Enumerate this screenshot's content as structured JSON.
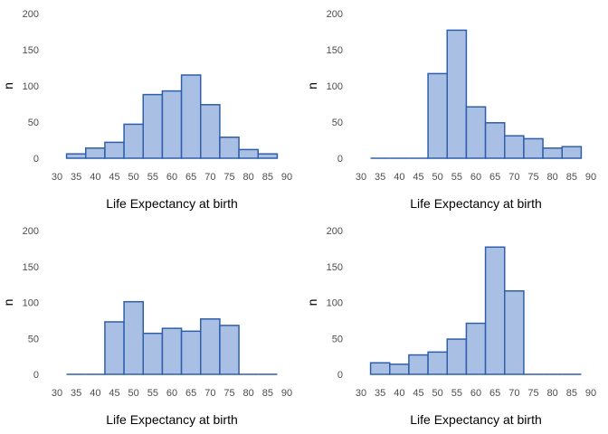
{
  "theme": {
    "bar_fill": "#a9bfe3",
    "bar_stroke": "#2f5faa",
    "text": "#4d4d4d",
    "title": "#000000"
  },
  "chart_data": [
    {
      "type": "bar",
      "xlabel": "Life Expectancy at birth",
      "ylabel": "n",
      "xlim": [
        30,
        90
      ],
      "ylim": [
        0,
        200
      ],
      "xticks": [
        30,
        35,
        40,
        45,
        50,
        55,
        60,
        65,
        70,
        75,
        80,
        85,
        90
      ],
      "yticks": [
        0,
        50,
        100,
        150,
        200
      ],
      "bin_width": 5,
      "bin_centers": [
        35,
        40,
        45,
        50,
        55,
        60,
        65,
        70,
        75,
        80,
        85
      ],
      "values": [
        6,
        14,
        22,
        47,
        88,
        93,
        115,
        74,
        29,
        12,
        6
      ]
    },
    {
      "type": "bar",
      "xlabel": "Life Expectancy at birth",
      "ylabel": "n",
      "xlim": [
        30,
        90
      ],
      "ylim": [
        0,
        200
      ],
      "xticks": [
        30,
        35,
        40,
        45,
        50,
        55,
        60,
        65,
        70,
        75,
        80,
        85,
        90
      ],
      "yticks": [
        0,
        50,
        100,
        150,
        200
      ],
      "bin_width": 5,
      "bin_centers": [
        35,
        40,
        45,
        50,
        55,
        60,
        65,
        70,
        75,
        80,
        85
      ],
      "values": [
        0,
        0,
        0,
        117,
        177,
        71,
        49,
        31,
        27,
        14,
        16
      ]
    },
    {
      "type": "bar",
      "xlabel": "Life Expectancy at birth",
      "ylabel": "n",
      "xlim": [
        30,
        90
      ],
      "ylim": [
        0,
        200
      ],
      "xticks": [
        30,
        35,
        40,
        45,
        50,
        55,
        60,
        65,
        70,
        75,
        80,
        85,
        90
      ],
      "yticks": [
        0,
        50,
        100,
        150,
        200
      ],
      "bin_width": 5,
      "bin_centers": [
        35,
        40,
        45,
        50,
        55,
        60,
        65,
        70,
        75,
        80,
        85
      ],
      "values": [
        0,
        0,
        73,
        101,
        57,
        64,
        60,
        77,
        68,
        0,
        0
      ]
    },
    {
      "type": "bar",
      "xlabel": "Life Expectancy at birth",
      "ylabel": "n",
      "xlim": [
        30,
        90
      ],
      "ylim": [
        0,
        200
      ],
      "xticks": [
        30,
        35,
        40,
        45,
        50,
        55,
        60,
        65,
        70,
        75,
        80,
        85,
        90
      ],
      "yticks": [
        0,
        50,
        100,
        150,
        200
      ],
      "bin_width": 5,
      "bin_centers": [
        35,
        40,
        45,
        50,
        55,
        60,
        65,
        70,
        75,
        80,
        85
      ],
      "values": [
        16,
        14,
        27,
        31,
        49,
        71,
        177,
        116,
        0,
        0,
        0
      ]
    }
  ]
}
